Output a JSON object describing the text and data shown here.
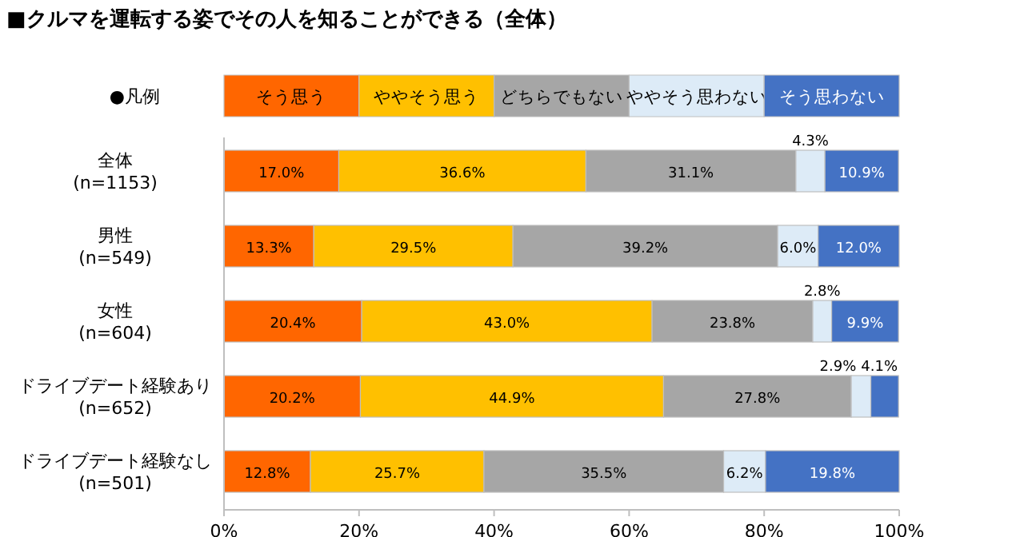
{
  "chart_data": {
    "type": "bar",
    "orientation": "horizontal",
    "stacked": true,
    "title": "■クルマを運転する姿でその人を知ることができる（全体）",
    "legend_title": "●凡例",
    "legend": "top",
    "categories": [
      "全体 (n=1153)",
      "男性 (n=549)",
      "女性 (n=604)",
      "ドライブデート経験あり (n=652)",
      "ドライブデート経験なし (n=501)"
    ],
    "xlim": [
      0,
      100
    ],
    "xticks": [
      {
        "value": 0,
        "label": "0%"
      },
      {
        "value": 20,
        "label": "20%"
      },
      {
        "value": 40,
        "label": "40%"
      },
      {
        "value": 60,
        "label": "60%"
      },
      {
        "value": 80,
        "label": "80%"
      },
      {
        "value": 100,
        "label": "100%"
      }
    ],
    "series": [
      {
        "name": "そう思う",
        "color": "#ff6600",
        "values": [
          17.0,
          13.3,
          20.4,
          20.2,
          12.8
        ],
        "value_labels": [
          "17.0%",
          "13.3%",
          "20.4%",
          "20.2%",
          "12.8%"
        ]
      },
      {
        "name": "ややそう思う",
        "color": "#ffc000",
        "values": [
          36.6,
          29.5,
          43.0,
          44.9,
          25.7
        ],
        "value_labels": [
          "36.6%",
          "29.5%",
          "43.0%",
          "44.9%",
          "25.7%"
        ]
      },
      {
        "name": "どちらでもない",
        "color": "#a6a6a6",
        "values": [
          31.1,
          39.2,
          23.8,
          27.8,
          35.5
        ],
        "value_labels": [
          "31.1%",
          "39.2%",
          "23.8%",
          "27.8%",
          "35.5%"
        ]
      },
      {
        "name": "ややそう思わない",
        "color": "#ddebf7",
        "values": [
          4.3,
          6.0,
          2.8,
          2.9,
          6.2
        ],
        "value_labels": [
          "4.3%",
          "6.0%",
          "2.8%",
          "2.9%",
          "6.2%"
        ]
      },
      {
        "name": "そう思わない",
        "color": "#4472c4",
        "values": [
          10.9,
          12.0,
          9.9,
          4.1,
          19.8
        ],
        "value_labels": [
          "10.9%",
          "12.0%",
          "9.9%",
          "4.1%",
          "19.8%"
        ]
      }
    ]
  }
}
